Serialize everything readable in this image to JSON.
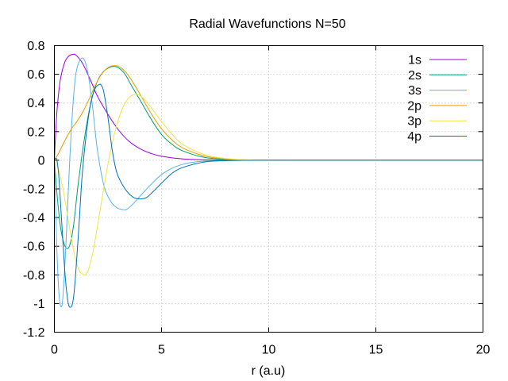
{
  "chart_data": {
    "type": "line",
    "title": "Radial Wavefunctions N=50",
    "xlabel": "r (a.u)",
    "ylabel": "",
    "xlim": [
      0,
      20
    ],
    "ylim": [
      -1.2,
      0.8
    ],
    "grid": true,
    "legend_position": "top-right",
    "x_ticks": [
      0,
      5,
      10,
      15,
      20
    ],
    "x_tick_labels": [
      "0",
      "5",
      "10",
      "15",
      "20"
    ],
    "y_ticks": [
      -1.2,
      -1,
      -0.8,
      -0.6,
      -0.4,
      -0.2,
      0,
      0.2,
      0.4,
      0.6,
      0.8
    ],
    "y_tick_labels": [
      "-1.2",
      "-1",
      "-0.8",
      "-0.6",
      "-0.4",
      "-0.2",
      "0",
      "0.2",
      "0.4",
      "0.6",
      "0.8"
    ],
    "series": [
      {
        "name": "1s",
        "color": "#9400d3",
        "x": [
          0,
          0.1,
          0.2,
          0.3,
          0.5,
          0.7,
          0.9,
          1.0,
          1.1,
          1.3,
          1.5,
          1.8,
          2.0,
          2.5,
          3.0,
          3.5,
          4.0,
          4.5,
          5.0,
          6.0,
          7.0,
          8.0,
          9.0,
          10.0,
          11.0
        ],
        "y": [
          0,
          0.3,
          0.47,
          0.58,
          0.69,
          0.73,
          0.74,
          0.735,
          0.72,
          0.68,
          0.62,
          0.52,
          0.45,
          0.32,
          0.21,
          0.13,
          0.08,
          0.048,
          0.028,
          0.009,
          0.003,
          0.001,
          0.0003,
          0.0001,
          0
        ]
      },
      {
        "name": "2s",
        "color": "#009e73",
        "x": [
          0,
          0.15,
          0.3,
          0.5,
          0.7,
          0.9,
          1.1,
          1.4,
          1.7,
          2.0,
          2.3,
          2.6,
          2.8,
          3.0,
          3.3,
          3.6,
          4.0,
          4.5,
          5.0,
          5.5,
          6.0,
          7.0,
          8.0,
          9.0,
          10.0,
          11.0
        ],
        "y": [
          0,
          -0.28,
          -0.48,
          -0.6,
          -0.6,
          -0.45,
          -0.18,
          0.15,
          0.4,
          0.55,
          0.62,
          0.65,
          0.655,
          0.645,
          0.6,
          0.52,
          0.42,
          0.29,
          0.18,
          0.11,
          0.065,
          0.02,
          0.006,
          0.002,
          0.0005,
          0
        ]
      },
      {
        "name": "3s",
        "color": "#56b4e9",
        "x": [
          0,
          0.1,
          0.2,
          0.3,
          0.4,
          0.55,
          0.7,
          0.85,
          1.0,
          1.2,
          1.4,
          1.6,
          1.8,
          2.0,
          2.3,
          2.6,
          2.9,
          3.2,
          3.4,
          3.7,
          4.0,
          4.5,
          5.0,
          5.5,
          6.0,
          6.5,
          7.0,
          8.0,
          9.0,
          10.0
        ],
        "y": [
          0,
          -0.55,
          -0.9,
          -1.02,
          -0.95,
          -0.55,
          -0.05,
          0.35,
          0.6,
          0.7,
          0.7,
          0.58,
          0.35,
          0.08,
          -0.17,
          -0.28,
          -0.33,
          -0.345,
          -0.34,
          -0.3,
          -0.25,
          -0.17,
          -0.1,
          -0.055,
          -0.028,
          -0.013,
          -0.006,
          -0.001,
          -0.0002,
          0
        ]
      },
      {
        "name": "2p",
        "color": "#e69f00",
        "x": [
          0,
          0.2,
          0.5,
          0.8,
          1.0,
          1.3,
          1.6,
          2.0,
          2.3,
          2.6,
          2.8,
          3.0,
          3.3,
          3.6,
          4.0,
          4.5,
          5.0,
          5.5,
          6.0,
          7.0,
          8.0,
          9.0,
          10.0,
          11.0
        ],
        "y": [
          0,
          0.05,
          0.14,
          0.22,
          0.26,
          0.33,
          0.42,
          0.55,
          0.62,
          0.655,
          0.66,
          0.655,
          0.62,
          0.56,
          0.46,
          0.33,
          0.22,
          0.14,
          0.085,
          0.03,
          0.009,
          0.003,
          0.001,
          0
        ]
      },
      {
        "name": "3p",
        "color": "#f0e442",
        "x": [
          0,
          0.2,
          0.4,
          0.6,
          0.8,
          1.0,
          1.2,
          1.4,
          1.5,
          1.6,
          1.8,
          2.0,
          2.3,
          2.6,
          2.9,
          3.2,
          3.5,
          3.8,
          4.0,
          4.3,
          4.6,
          5.0,
          5.5,
          6.0,
          7.0,
          8.0,
          9.0,
          10.0
        ],
        "y": [
          0,
          -0.07,
          -0.2,
          -0.37,
          -0.55,
          -0.7,
          -0.78,
          -0.8,
          -0.79,
          -0.76,
          -0.64,
          -0.47,
          -0.2,
          0.05,
          0.24,
          0.37,
          0.44,
          0.46,
          0.45,
          0.41,
          0.35,
          0.27,
          0.18,
          0.11,
          0.04,
          0.012,
          0.003,
          0
        ]
      },
      {
        "name": "4p",
        "color": "#0072b2",
        "x": [
          0,
          0.1,
          0.2,
          0.35,
          0.5,
          0.65,
          0.8,
          0.9,
          1.0,
          1.15,
          1.3,
          1.5,
          1.7,
          1.9,
          2.1,
          2.2,
          2.3,
          2.5,
          2.7,
          2.9,
          3.1,
          3.4,
          3.7,
          4.0,
          4.3,
          4.6,
          5.0,
          5.5,
          6.0,
          7.0,
          8.0,
          9.0,
          10.0
        ],
        "y": [
          0,
          0.01,
          -0.1,
          -0.45,
          -0.8,
          -1.0,
          -1.02,
          -0.95,
          -0.78,
          -0.45,
          -0.1,
          0.2,
          0.4,
          0.5,
          0.53,
          0.52,
          0.48,
          0.3,
          0.07,
          -0.08,
          -0.15,
          -0.22,
          -0.26,
          -0.27,
          -0.26,
          -0.22,
          -0.16,
          -0.09,
          -0.05,
          -0.012,
          -0.003,
          -0.0005,
          0
        ]
      }
    ]
  }
}
